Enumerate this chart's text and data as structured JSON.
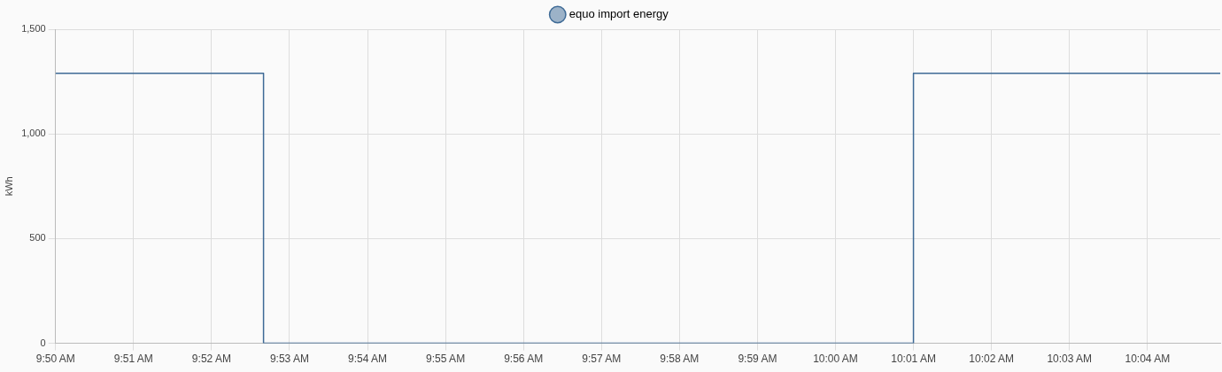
{
  "chart_data": {
    "type": "step",
    "ylabel": "kWh",
    "legend": "top",
    "grid": true,
    "marker": "none",
    "line_style": "solid",
    "xlim": [
      9.833333,
      10.082222
    ],
    "ylim": [
      0,
      1500
    ],
    "yticks": [
      {
        "value": 0,
        "label": "0"
      },
      {
        "value": 500,
        "label": "500"
      },
      {
        "value": 1000,
        "label": "1,000"
      },
      {
        "value": 1500,
        "label": "1,500"
      }
    ],
    "xticks": [
      {
        "value": 9.833333,
        "label": "9:50 AM"
      },
      {
        "value": 9.85,
        "label": "9:51 AM"
      },
      {
        "value": 9.866667,
        "label": "9:52 AM"
      },
      {
        "value": 9.883333,
        "label": "9:53 AM"
      },
      {
        "value": 9.9,
        "label": "9:54 AM"
      },
      {
        "value": 9.916667,
        "label": "9:55 AM"
      },
      {
        "value": 9.933333,
        "label": "9:56 AM"
      },
      {
        "value": 9.95,
        "label": "9:57 AM"
      },
      {
        "value": 9.966667,
        "label": "9:58 AM"
      },
      {
        "value": 9.983333,
        "label": "9:59 AM"
      },
      {
        "value": 10,
        "label": "10:00 AM"
      },
      {
        "value": 10.016667,
        "label": "10:01 AM"
      },
      {
        "value": 10.033333,
        "label": "10:02 AM"
      },
      {
        "value": 10.05,
        "label": "10:03 AM"
      },
      {
        "value": 10.066667,
        "label": "10:04 AM"
      }
    ],
    "series": [
      {
        "name": "equo import energy",
        "color": "#3e6a96",
        "x": [
          9.833333,
          9.877778,
          10.016667,
          10.082222
        ],
        "values": [
          1290,
          0,
          1290,
          1290
        ]
      }
    ]
  }
}
